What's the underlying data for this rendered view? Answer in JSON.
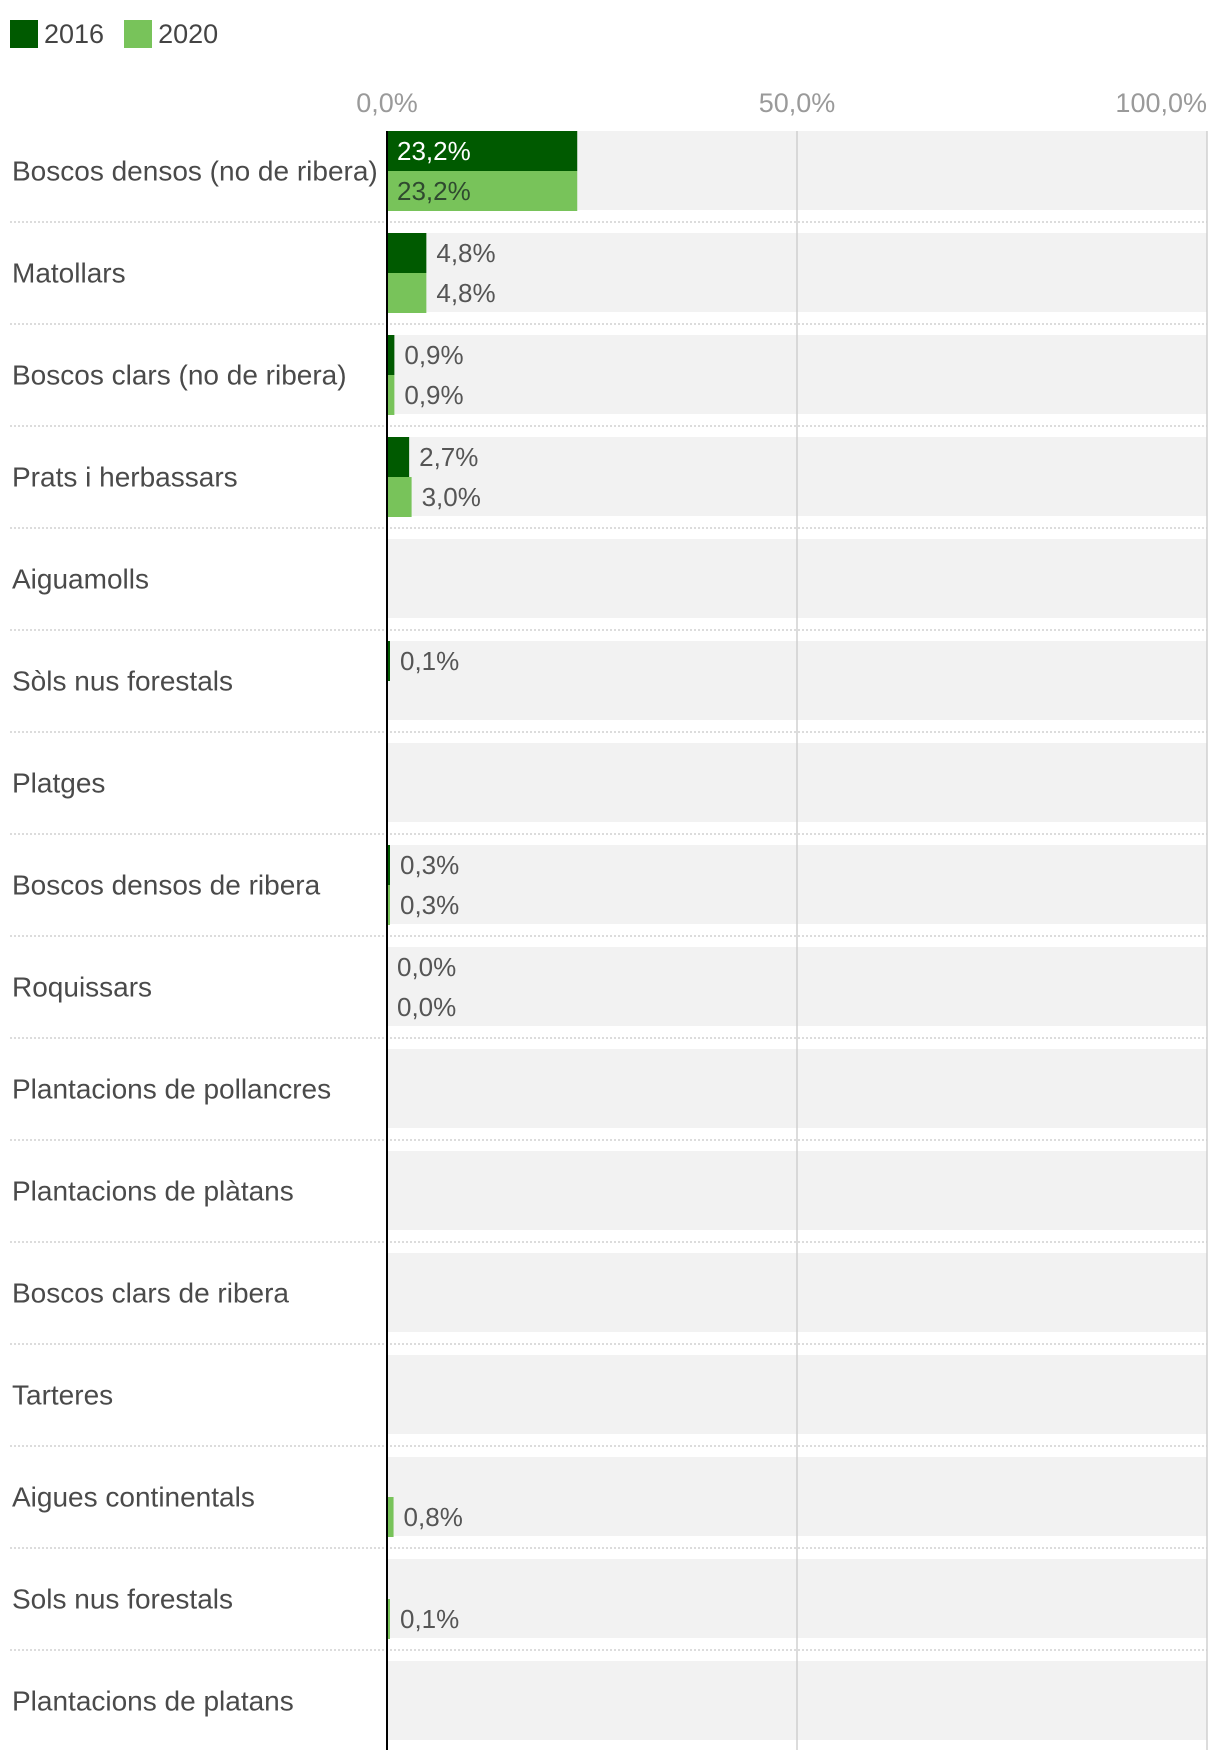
{
  "chart_data": {
    "type": "bar",
    "orientation": "horizontal",
    "title": "",
    "xlabel": "",
    "ylabel": "",
    "xlim": [
      0,
      100
    ],
    "ticks": [
      "0,0%",
      "50,0%",
      "100,0%"
    ],
    "tick_values": [
      0,
      50,
      100
    ],
    "grid": true,
    "legend_position": "top-left",
    "categories": [
      "Boscos densos (no de ribera)",
      "Matollars",
      "Boscos clars (no de ribera)",
      "Prats i herbassars",
      "Aiguamolls",
      "Sòls nus forestals",
      "Platges",
      "Boscos densos de ribera",
      "Roquissars",
      "Plantacions de pollancres",
      "Plantacions de plàtans",
      "Boscos clars de ribera",
      "Tarteres",
      "Aigues continentals",
      "Sols nus forestals",
      "Plantacions de platans"
    ],
    "series": [
      {
        "name": "2016",
        "color": "#005a00",
        "values": [
          23.2,
          4.8,
          0.9,
          2.7,
          null,
          0.1,
          null,
          0.3,
          0.0,
          null,
          null,
          null,
          null,
          null,
          null,
          null
        ],
        "labels": [
          "23,2%",
          "4,8%",
          "0,9%",
          "2,7%",
          "",
          "0,1%",
          "",
          "0,3%",
          "0,0%",
          "",
          "",
          "",
          "",
          "",
          "",
          ""
        ]
      },
      {
        "name": "2020",
        "color": "#78c35a",
        "values": [
          23.2,
          4.8,
          0.9,
          3.0,
          null,
          null,
          null,
          0.3,
          0.0,
          null,
          null,
          null,
          null,
          0.8,
          0.1,
          null
        ],
        "labels": [
          "23,2%",
          "4,8%",
          "0,9%",
          "3,0%",
          "",
          "",
          "",
          "0,3%",
          "0,0%",
          "",
          "",
          "",
          "",
          "0,8%",
          "0,1%",
          ""
        ]
      }
    ]
  }
}
